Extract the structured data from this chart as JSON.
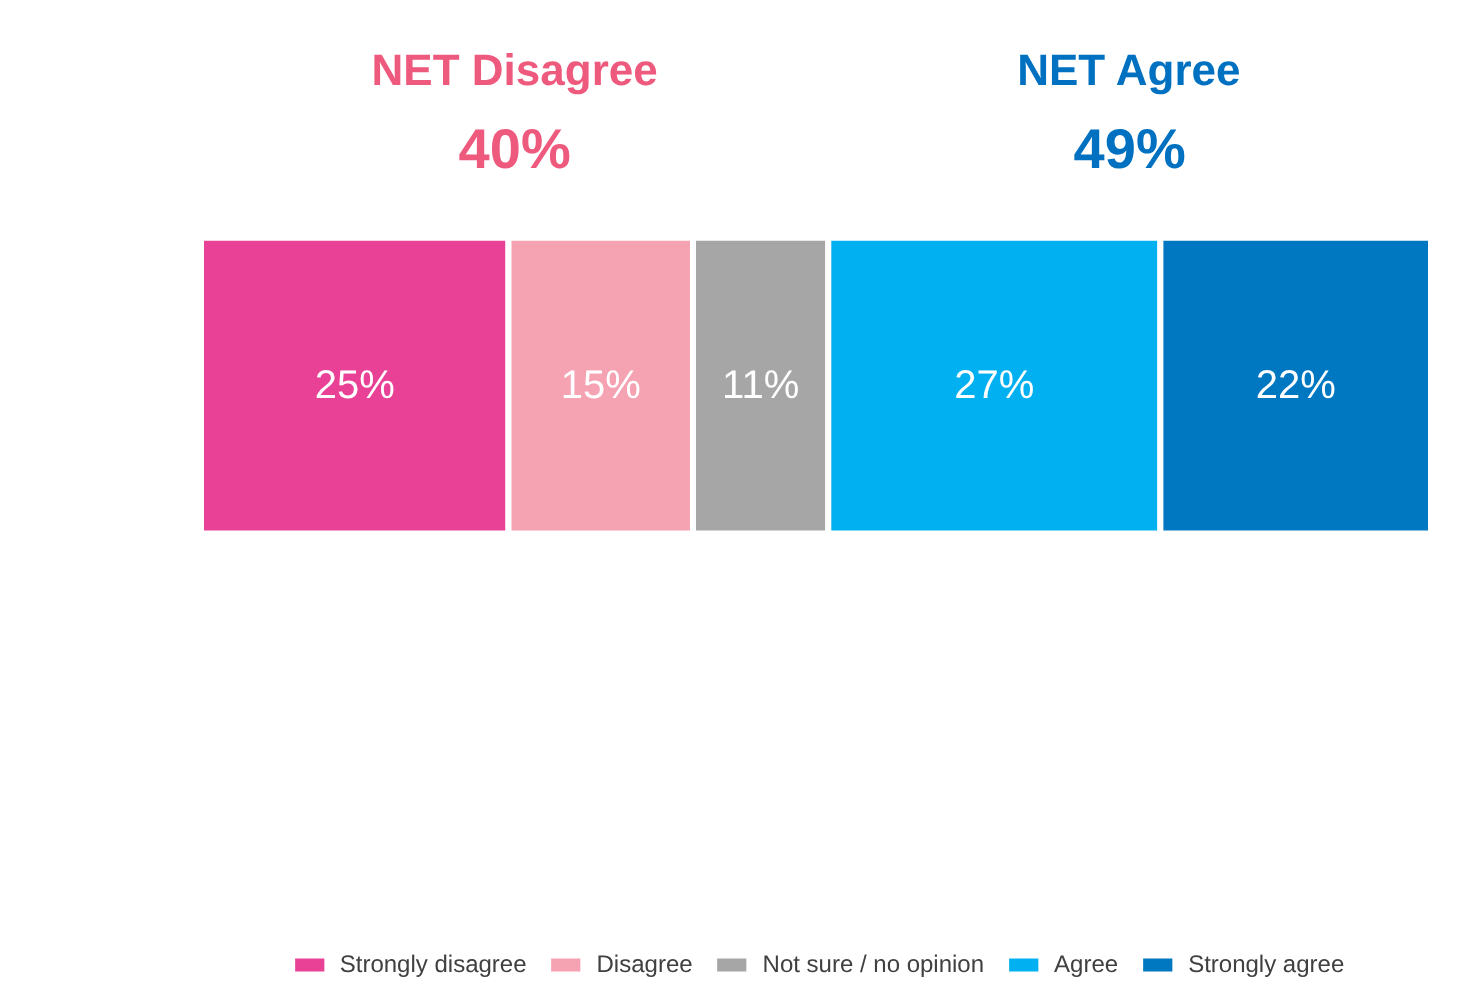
{
  "chart_data": {
    "type": "bar",
    "orientation": "horizontal",
    "stacked": true,
    "categories": [
      null
    ],
    "series": [
      {
        "name": "Strongly disagree",
        "color": "#e84196",
        "values": [
          25
        ],
        "value_labels": [
          "25%"
        ]
      },
      {
        "name": "Disagree",
        "color": "#f5a2b2",
        "values": [
          15
        ],
        "value_labels": [
          "15%"
        ]
      },
      {
        "name": "Not sure / no opinion",
        "color": "#a6a6a6",
        "values": [
          11
        ],
        "value_labels": [
          "11%"
        ]
      },
      {
        "name": "Agree",
        "color": "#00b0f0",
        "values": [
          27
        ],
        "value_labels": [
          "27%"
        ]
      },
      {
        "name": "Strongly agree",
        "color": "#0078c1",
        "values": [
          22
        ],
        "value_labels": [
          "22%"
        ]
      }
    ],
    "legend": "bottom",
    "annotations": [
      "NET Disagree",
      "40%",
      "NET Agree",
      "49%"
    ]
  }
}
